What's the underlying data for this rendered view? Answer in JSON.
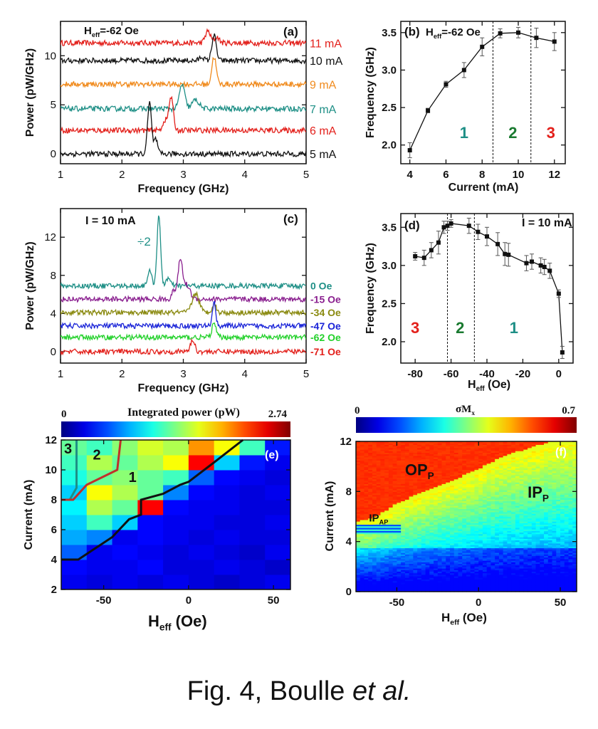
{
  "colors": {
    "red": "#e3201b",
    "black": "#111111",
    "orange": "#f08a1c",
    "teal": "#1e8f86",
    "purple": "#8a1f8f",
    "olive": "#8a8a10",
    "blue": "#1a24d8",
    "green": "#22d12a",
    "dkgreen": "#1a7a30"
  },
  "panels": {
    "a": {
      "label": "(a)",
      "field": "H",
      "field_sub": "eff",
      "field_value": "=-62 Oe",
      "xlabel": "Frequency (GHz)",
      "ylabel": "Power  (pW/GHz)",
      "xlim": [
        1,
        5
      ],
      "ylim": [
        -1,
        13.5
      ],
      "xticks": [
        "1",
        "2",
        "3",
        "4",
        "5"
      ],
      "yticks": [
        "0",
        "5",
        "10"
      ],
      "series": [
        {
          "name": "11 mA",
          "offset": 11.3,
          "color": "red",
          "peaks": [
            [
              3.4,
              1.2,
              0.06
            ],
            [
              3.55,
              0.6,
              0.05
            ]
          ]
        },
        {
          "name": "10 mA",
          "offset": 9.5,
          "color": "black",
          "peaks": [
            [
              3.5,
              2.6,
              0.05
            ],
            [
              3.3,
              0.4,
              0.05
            ]
          ]
        },
        {
          "name": "9 mA",
          "offset": 7.1,
          "color": "orange",
          "peaks": [
            [
              3.5,
              2.8,
              0.05
            ]
          ]
        },
        {
          "name": "7 mA",
          "offset": 4.6,
          "color": "teal",
          "peaks": [
            [
              2.98,
              2.5,
              0.06
            ],
            [
              3.2,
              0.9,
              0.08
            ]
          ]
        },
        {
          "name": "6 mA",
          "offset": 2.4,
          "color": "red",
          "peaks": [
            [
              2.8,
              3.4,
              0.05
            ],
            [
              2.7,
              1.0,
              0.05
            ]
          ]
        },
        {
          "name": "5 mA",
          "offset": 0.0,
          "color": "black",
          "peaks": [
            [
              2.45,
              5.2,
              0.045
            ],
            [
              2.55,
              1.5,
              0.04
            ]
          ]
        }
      ]
    },
    "b": {
      "label": "(b)",
      "field": "H",
      "field_sub": "eff",
      "field_value": "=-62 Oe",
      "type": "line",
      "xlabel": "Current (mA)",
      "ylabel": "Frequency (GHz)",
      "xlim": [
        3.5,
        12.6
      ],
      "ylim": [
        1.75,
        3.65
      ],
      "xticks": [
        "4",
        "6",
        "8",
        "10",
        "12"
      ],
      "yticks": [
        "2.0",
        "2.5",
        "3.0",
        "3.5"
      ],
      "x": [
        4,
        5,
        6,
        7,
        8,
        9,
        10,
        11,
        12
      ],
      "y": [
        1.93,
        2.46,
        2.81,
        3.0,
        3.31,
        3.49,
        3.5,
        3.43,
        3.38
      ],
      "err": [
        0.1,
        0.03,
        0.04,
        0.1,
        0.12,
        0.06,
        0.07,
        0.13,
        0.12
      ],
      "dividers": [
        8.6,
        10.7
      ],
      "regions": [
        {
          "text": "1",
          "x": 7.0,
          "color": "teal"
        },
        {
          "text": "2",
          "x": 9.7,
          "color": "dkgreen"
        },
        {
          "text": "3",
          "x": 11.8,
          "color": "red"
        }
      ]
    },
    "c": {
      "label": "(c)",
      "title": "I = 10 mA",
      "divide_label": "÷2",
      "xlabel": "Frequency (GHz)",
      "ylabel": "Power  (pW/GHz)",
      "xlim": [
        1,
        5
      ],
      "ylim": [
        -1.2,
        15
      ],
      "xticks": [
        "1",
        "2",
        "3",
        "4",
        "5"
      ],
      "yticks": [
        "0",
        "4",
        "8",
        "12"
      ],
      "series": [
        {
          "name": "0 Oe",
          "offset": 6.9,
          "color": "teal",
          "peaks": [
            [
              2.6,
              7.5,
              0.04
            ],
            [
              2.45,
              1.5,
              0.05
            ],
            [
              2.75,
              0.8,
              0.05
            ]
          ]
        },
        {
          "name": "-15 Oe",
          "offset": 5.5,
          "color": "purple",
          "peaks": [
            [
              2.95,
              3.9,
              0.05
            ],
            [
              3.05,
              1.5,
              0.08
            ],
            [
              2.85,
              0.9,
              0.05
            ]
          ]
        },
        {
          "name": "-34 Oe",
          "offset": 4.1,
          "color": "olive",
          "peaks": [
            [
              3.2,
              2.0,
              0.08
            ],
            [
              3.5,
              0.9,
              0.05
            ]
          ]
        },
        {
          "name": "-47 Oe",
          "offset": 2.7,
          "color": "blue",
          "peaks": [
            [
              3.5,
              2.4,
              0.04
            ]
          ]
        },
        {
          "name": "-62 Oe",
          "offset": 1.5,
          "color": "green",
          "peaks": [
            [
              3.5,
              1.4,
              0.05
            ]
          ]
        },
        {
          "name": "-71 Oe",
          "offset": 0.0,
          "color": "red",
          "peaks": [
            [
              3.15,
              1.2,
              0.05
            ]
          ]
        }
      ]
    },
    "d": {
      "label": "(d)",
      "title": "I = 10 mA",
      "type": "line",
      "xlabel": "H",
      "xlabel_sub": "eff",
      "xlabel_rest": " (Oe)",
      "ylabel": "Frequency (GHz)",
      "xlim": [
        -88,
        8
      ],
      "ylim": [
        1.72,
        3.68
      ],
      "xticks": [
        "-80",
        "-60",
        "-40",
        "-20",
        "0"
      ],
      "yticks": [
        "2.0",
        "2.5",
        "3.0",
        "3.5"
      ],
      "x": [
        -80,
        -75,
        -71,
        -67,
        -64,
        -62,
        -60,
        -50,
        -45,
        -40,
        -34,
        -30,
        -28,
        -18,
        -15,
        -10,
        -8,
        -5,
        0,
        2
      ],
      "y": [
        3.12,
        3.1,
        3.2,
        3.3,
        3.5,
        3.52,
        3.55,
        3.52,
        3.44,
        3.38,
        3.28,
        3.15,
        3.14,
        3.03,
        3.05,
        3.0,
        2.98,
        2.93,
        2.63,
        1.86
      ],
      "err": [
        0.05,
        0.1,
        0.1,
        0.15,
        0.08,
        0.06,
        0.05,
        0.1,
        0.1,
        0.12,
        0.15,
        0.15,
        0.15,
        0.1,
        0.1,
        0.1,
        0.1,
        0.1,
        0.05,
        0.08
      ],
      "dividers": [
        -62,
        -47
      ],
      "regions": [
        {
          "text": "3",
          "x": -80,
          "color": "red"
        },
        {
          "text": "2",
          "x": -55,
          "color": "dkgreen"
        },
        {
          "text": "1",
          "x": -25,
          "color": "teal"
        }
      ]
    },
    "e": {
      "label": "(e)",
      "colorbar_title": "Integrated power (pW)",
      "colorbar_min": "0",
      "colorbar_max": "2.74",
      "type": "heatmap",
      "xlabel": "H",
      "xlabel_sub": "eff",
      "xlabel_rest": "  (Oe)",
      "ylabel": "Current  (mA)",
      "xlim": [
        -75,
        60
      ],
      "ylim": [
        2,
        12
      ],
      "xticks": [
        "-50",
        "0",
        "50"
      ],
      "yticks": [
        "2",
        "4",
        "6",
        "8",
        "10",
        "12"
      ],
      "x_edges": [
        -75,
        -60,
        -45,
        -30,
        -15,
        0,
        15,
        30,
        45,
        60
      ],
      "y_edges": [
        2,
        3,
        4,
        5,
        6,
        7,
        8,
        9,
        10,
        11,
        12
      ],
      "values": [
        [
          0.3,
          0.25,
          0.3,
          0.25,
          0.3,
          0.25,
          0.2,
          0.25,
          0.3
        ],
        [
          0.35,
          0.3,
          0.3,
          0.35,
          0.25,
          0.25,
          0.3,
          0.25,
          0.2
        ],
        [
          0.6,
          0.3,
          0.35,
          0.3,
          0.25,
          0.3,
          0.25,
          0.2,
          0.3
        ],
        [
          0.8,
          0.7,
          0.3,
          0.35,
          0.3,
          0.25,
          0.3,
          0.25,
          0.25
        ],
        [
          0.9,
          1.2,
          0.9,
          0.35,
          0.3,
          0.3,
          0.25,
          0.25,
          0.3
        ],
        [
          1.0,
          1.5,
          1.3,
          2.4,
          0.35,
          0.3,
          0.3,
          0.25,
          0.25
        ],
        [
          0.9,
          1.7,
          1.5,
          1.3,
          0.7,
          0.35,
          0.3,
          0.25,
          0.3
        ],
        [
          1.1,
          1.3,
          1.4,
          1.3,
          1.2,
          0.6,
          0.35,
          0.3,
          0.25
        ],
        [
          1.2,
          1.5,
          1.3,
          1.5,
          1.7,
          2.4,
          0.9,
          0.4,
          0.3
        ],
        [
          1.3,
          1.2,
          1.4,
          1.6,
          1.5,
          2.0,
          1.7,
          1.2,
          0.4
        ]
      ],
      "top_right_value": 2.74,
      "boundaries": [
        {
          "color": "teal",
          "points": [
            [
              -70,
              8
            ],
            [
              -66,
              8.8
            ],
            [
              -66,
              12
            ]
          ]
        },
        {
          "color": "red",
          "points": [
            [
              -75,
              8
            ],
            [
              -68,
              8
            ],
            [
              -60,
              9
            ],
            [
              -42,
              10
            ],
            [
              -40,
              12
            ]
          ]
        },
        {
          "color": "black",
          "points": [
            [
              -75,
              4
            ],
            [
              -65,
              4
            ],
            [
              -45,
              5.5
            ],
            [
              -35,
              6.7
            ],
            [
              -28,
              7
            ],
            [
              -28,
              8
            ],
            [
              -15,
              8.4
            ],
            [
              -5,
              9
            ],
            [
              0,
              9.2
            ],
            [
              15,
              10.5
            ],
            [
              32,
              12
            ]
          ]
        }
      ],
      "regions": [
        {
          "text": "3",
          "x": -71,
          "y": 11.1
        },
        {
          "text": "2",
          "x": -54,
          "y": 10.7
        },
        {
          "text": "1",
          "x": -33,
          "y": 9.2
        }
      ]
    },
    "f": {
      "label": "(f)",
      "colorbar_title": "σM",
      "colorbar_title_sub": "x",
      "colorbar_min": "0",
      "colorbar_max": "0.7",
      "type": "heatmap",
      "xlabel": "H",
      "xlabel_sub": "eff",
      "xlabel_rest": " (Oe)",
      "ylabel": "Current (mA)",
      "xlim": [
        -75,
        60
      ],
      "ylim": [
        0,
        12
      ],
      "xticks": [
        "-50",
        "0",
        "50"
      ],
      "yticks": [
        "0",
        "4",
        "8",
        "12"
      ],
      "boundary": [
        [
          -75,
          5.3
        ],
        [
          -62,
          5.8
        ],
        [
          -50,
          6.8
        ],
        [
          -40,
          7.4
        ],
        [
          -25,
          8.2
        ],
        [
          -10,
          9.0
        ],
        [
          0,
          9.6
        ],
        [
          15,
          10.6
        ],
        [
          35,
          11.4
        ],
        [
          50,
          11.9
        ],
        [
          60,
          12
        ]
      ],
      "ip_ap_level": 5.0,
      "region_labels": [
        {
          "text": "OP",
          "sub": "P",
          "x": -45,
          "y": 9.3
        },
        {
          "text": "IP",
          "sub": "P",
          "x": 30,
          "y": 7.5
        },
        {
          "text": "IP",
          "sub": "AP",
          "x": -67,
          "y": 5.6
        }
      ]
    }
  },
  "caption": {
    "prefix": "Fig. 4, Boulle ",
    "italic": "et al."
  }
}
